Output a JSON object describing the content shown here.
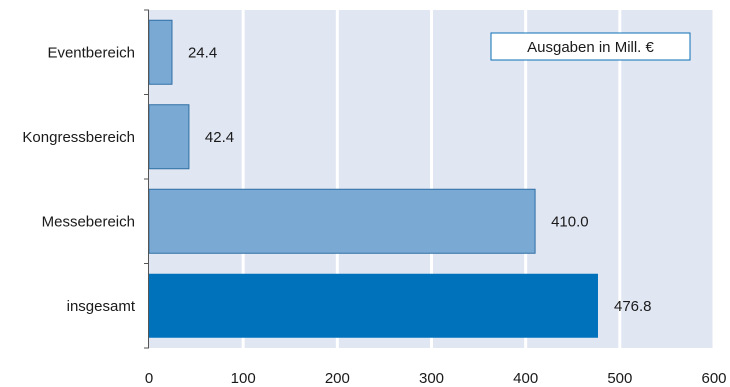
{
  "chart_data": {
    "type": "bar",
    "orientation": "horizontal",
    "categories": [
      "Eventbereich",
      "Kongressbereich",
      "Messebereich",
      "insgesamt"
    ],
    "values": [
      24.4,
      42.4,
      410.0,
      476.8
    ],
    "value_labels": [
      "24.4",
      "42.4",
      "410.0",
      "476.8"
    ],
    "legend_box": "Ausgaben in Mill. €",
    "xlim": [
      0,
      600
    ],
    "xticks": [
      0,
      100,
      200,
      300,
      400,
      500,
      600
    ],
    "grid": true,
    "colors": {
      "plot_background": "#e0e6f2",
      "gridline": "#ffffff",
      "bar_light": "#7aaad4",
      "bar_dark": "#0072bc",
      "bar_stroke": "#2f6ea5",
      "legend_border": "#0a6fb5"
    },
    "highlighted_category": "insgesamt"
  }
}
